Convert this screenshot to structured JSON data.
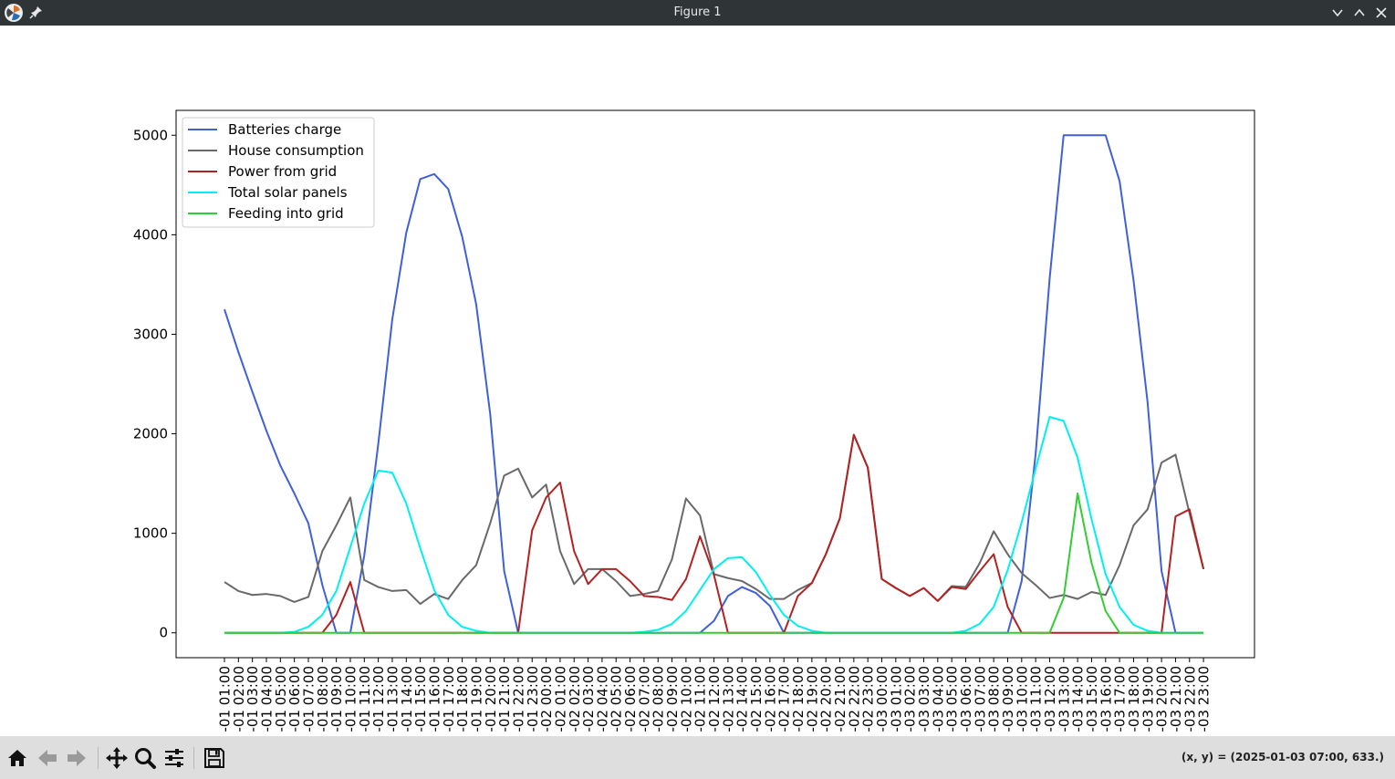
{
  "window": {
    "title": "Figure 1"
  },
  "toolbar": {
    "buttons": [
      {
        "name": "home-button",
        "icon": "home-icon"
      },
      {
        "name": "back-button",
        "icon": "arrow-left-icon"
      },
      {
        "name": "forward-button",
        "icon": "arrow-right-icon"
      },
      {
        "name": "pan-button",
        "icon": "move-icon"
      },
      {
        "name": "zoom-button",
        "icon": "magnifier-icon"
      },
      {
        "name": "configure-subplots-button",
        "icon": "sliders-icon"
      },
      {
        "name": "save-button",
        "icon": "floppy-disk-icon"
      }
    ],
    "coords": "(x, y) = (2025-01-03 07:00, 633.)"
  },
  "chart_data": {
    "type": "line",
    "title": "",
    "xlabel": "",
    "ylabel": "",
    "ylim": [
      -250,
      5250
    ],
    "yticks": [
      0,
      1000,
      2000,
      3000,
      4000,
      5000
    ],
    "grid": false,
    "legend_position": "upper left",
    "x": [
      "-01 01:00",
      "-01 02:00",
      "-01 03:00",
      "-01 04:00",
      "-01 05:00",
      "-01 06:00",
      "-01 07:00",
      "-01 08:00",
      "-01 09:00",
      "-01 10:00",
      "-01 11:00",
      "-01 12:00",
      "-01 13:00",
      "-01 14:00",
      "-01 15:00",
      "-01 16:00",
      "-01 17:00",
      "-01 18:00",
      "-01 19:00",
      "-01 20:00",
      "-01 21:00",
      "-01 22:00",
      "-01 23:00",
      "-02 00:00",
      "-02 01:00",
      "-02 02:00",
      "-02 03:00",
      "-02 04:00",
      "-02 05:00",
      "-02 06:00",
      "-02 07:00",
      "-02 08:00",
      "-02 09:00",
      "-02 10:00",
      "-02 11:00",
      "-02 12:00",
      "-02 13:00",
      "-02 14:00",
      "-02 15:00",
      "-02 16:00",
      "-02 17:00",
      "-02 18:00",
      "-02 19:00",
      "-02 20:00",
      "-02 21:00",
      "-02 22:00",
      "-02 23:00",
      "-03 00:00",
      "-03 01:00",
      "-03 02:00",
      "-03 03:00",
      "-03 04:00",
      "-03 05:00",
      "-03 06:00",
      "-03 07:00",
      "-03 08:00",
      "-03 09:00",
      "-03 10:00",
      "-03 11:00",
      "-03 12:00",
      "-03 13:00",
      "-03 14:00",
      "-03 15:00",
      "-03 16:00",
      "-03 17:00",
      "-03 18:00",
      "-03 19:00",
      "-03 20:00",
      "-03 21:00",
      "-03 22:00",
      "-03 23:00"
    ],
    "series": [
      {
        "name": "Batteries charge",
        "color": "#4060d8",
        "values": [
          3250,
          2820,
          2420,
          2030,
          1680,
          1400,
          1100,
          480,
          0,
          0,
          780,
          1900,
          3150,
          4020,
          4560,
          4610,
          4460,
          3980,
          3300,
          2200,
          620,
          0,
          0,
          0,
          0,
          0,
          0,
          0,
          0,
          0,
          0,
          0,
          0,
          0,
          0,
          120,
          370,
          460,
          400,
          270,
          0,
          0,
          0,
          0,
          0,
          0,
          0,
          0,
          0,
          0,
          0,
          0,
          0,
          0,
          0,
          0,
          0,
          520,
          1800,
          3560,
          5000,
          5000,
          5000,
          5000,
          4540,
          3540,
          2320,
          620,
          0,
          0,
          0
        ]
      },
      {
        "name": "House consumption",
        "color": "#696969",
        "values": [
          510,
          420,
          380,
          390,
          370,
          310,
          360,
          820,
          1080,
          1360,
          530,
          460,
          420,
          430,
          290,
          390,
          340,
          530,
          680,
          1100,
          1580,
          1650,
          1360,
          1490,
          820,
          490,
          640,
          640,
          520,
          370,
          390,
          420,
          740,
          1350,
          1180,
          590,
          550,
          520,
          440,
          340,
          340,
          430,
          500,
          790,
          1150,
          1990,
          1660,
          540,
          450,
          370,
          450,
          320,
          470,
          460,
          700,
          1020,
          790,
          600,
          480,
          350,
          380,
          340,
          410,
          380,
          680,
          1080,
          1240,
          1710,
          1790,
          1200,
          640
        ]
      },
      {
        "name": "Power from grid",
        "color": "#b22222",
        "values": [
          0,
          0,
          0,
          0,
          0,
          0,
          0,
          0,
          180,
          510,
          0,
          0,
          0,
          0,
          0,
          0,
          0,
          0,
          0,
          0,
          0,
          0,
          1030,
          1360,
          1510,
          820,
          490,
          640,
          640,
          520,
          370,
          360,
          330,
          540,
          970,
          580,
          0,
          0,
          0,
          0,
          0,
          370,
          500,
          790,
          1150,
          1990,
          1660,
          540,
          450,
          370,
          450,
          320,
          460,
          440,
          620,
          790,
          260,
          0,
          0,
          0,
          0,
          0,
          0,
          0,
          0,
          0,
          0,
          0,
          1170,
          1240,
          640
        ]
      },
      {
        "name": "Total solar panels",
        "color": "#00f0f0",
        "values": [
          0,
          0,
          0,
          0,
          0,
          10,
          60,
          180,
          420,
          860,
          1300,
          1630,
          1610,
          1300,
          850,
          430,
          180,
          60,
          20,
          0,
          0,
          0,
          0,
          0,
          0,
          0,
          0,
          0,
          0,
          0,
          10,
          30,
          90,
          220,
          430,
          640,
          750,
          760,
          610,
          380,
          180,
          70,
          20,
          0,
          0,
          0,
          0,
          0,
          0,
          0,
          0,
          0,
          0,
          20,
          90,
          260,
          630,
          1110,
          1650,
          2170,
          2130,
          1760,
          1140,
          590,
          260,
          80,
          20,
          0,
          0,
          0,
          0
        ]
      },
      {
        "name": "Feeding into grid",
        "color": "#32cd32",
        "values": [
          0,
          0,
          0,
          0,
          0,
          0,
          0,
          0,
          0,
          0,
          0,
          0,
          0,
          0,
          0,
          0,
          0,
          0,
          0,
          0,
          0,
          0,
          0,
          0,
          0,
          0,
          0,
          0,
          0,
          0,
          0,
          0,
          0,
          0,
          0,
          0,
          0,
          0,
          0,
          0,
          0,
          0,
          0,
          0,
          0,
          0,
          0,
          0,
          0,
          0,
          0,
          0,
          0,
          0,
          0,
          0,
          0,
          0,
          0,
          0,
          350,
          1400,
          700,
          220,
          0,
          0,
          0,
          0,
          0,
          0,
          0
        ]
      }
    ]
  }
}
